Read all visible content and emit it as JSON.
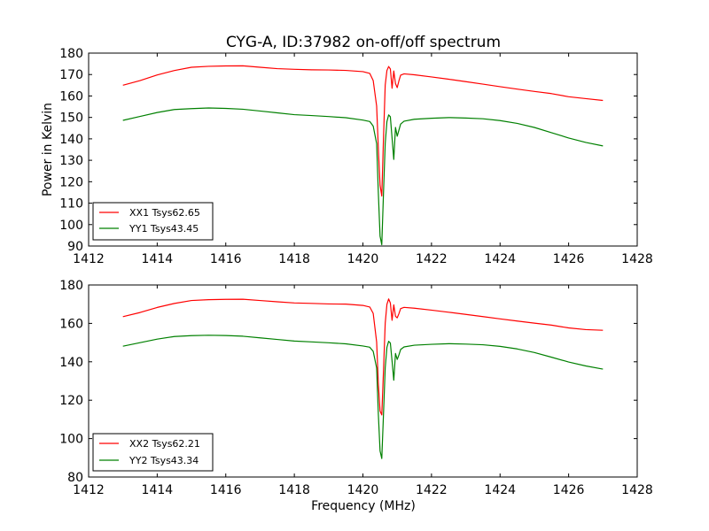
{
  "chart_data": [
    {
      "type": "line",
      "title": "CYG-A, ID:37982 on-off/off spectrum",
      "xlabel": "",
      "ylabel": "Power in Kelvin",
      "xlim": [
        1412,
        1428
      ],
      "ylim": [
        90,
        180
      ],
      "x_ticks": [
        "1412",
        "1414",
        "1416",
        "1418",
        "1420",
        "1422",
        "1424",
        "1426",
        "1428"
      ],
      "y_ticks": [
        "90",
        "100",
        "110",
        "120",
        "130",
        "140",
        "150",
        "160",
        "170",
        "180"
      ],
      "grid": false,
      "legend_position": "lower-left",
      "x": [
        1413.0,
        1413.5,
        1414.0,
        1414.5,
        1415.0,
        1415.5,
        1416.0,
        1416.5,
        1417.0,
        1417.5,
        1418.0,
        1418.5,
        1419.0,
        1419.5,
        1420.0,
        1420.2,
        1420.3,
        1420.4,
        1420.45,
        1420.5,
        1420.55,
        1420.6,
        1420.65,
        1420.7,
        1420.75,
        1420.8,
        1420.85,
        1420.9,
        1420.95,
        1421.0,
        1421.05,
        1421.1,
        1421.2,
        1421.5,
        1422.0,
        1422.5,
        1423.0,
        1423.5,
        1424.0,
        1424.5,
        1425.0,
        1425.5,
        1426.0,
        1426.5,
        1427.0
      ],
      "series": [
        {
          "name": "XX1 Tsys62.65",
          "color": "#ff0000",
          "values": [
            165,
            167,
            169.5,
            171.5,
            173,
            173.5,
            173.8,
            174,
            173.5,
            173,
            172.8,
            172.6,
            172.5,
            172.2,
            171.5,
            170.5,
            167,
            155,
            135,
            118,
            113,
            140,
            165,
            172,
            174,
            173,
            164,
            172,
            166,
            164,
            167,
            169.5,
            170,
            169.5,
            168.5,
            167.5,
            166.5,
            165.5,
            164.5,
            163.5,
            162.5,
            161.5,
            160,
            159,
            158
          ]
        },
        {
          "name": "YY1 Tsys43.45",
          "color": "#008000",
          "values": [
            148.5,
            150.5,
            152.5,
            154,
            154.5,
            154.8,
            154.5,
            154,
            153,
            152,
            151,
            150.5,
            150,
            149.5,
            148.5,
            148,
            146,
            138,
            115,
            95,
            91,
            115,
            138,
            148,
            151,
            150,
            140,
            130,
            145,
            141,
            144,
            147,
            148.5,
            149.5,
            150,
            150.3,
            150,
            149.5,
            148.5,
            147,
            145,
            142.5,
            140,
            138,
            136.5
          ]
        }
      ]
    },
    {
      "type": "line",
      "title": "",
      "xlabel": "Frequency (MHz)",
      "ylabel": "",
      "xlim": [
        1412,
        1428
      ],
      "ylim": [
        80,
        180
      ],
      "x_ticks": [
        "1412",
        "1414",
        "1416",
        "1418",
        "1420",
        "1422",
        "1424",
        "1426",
        "1428"
      ],
      "y_ticks": [
        "80",
        "100",
        "120",
        "140",
        "160",
        "180"
      ],
      "grid": false,
      "legend_position": "lower-left",
      "x": [
        1413.0,
        1413.5,
        1414.0,
        1414.5,
        1415.0,
        1415.5,
        1416.0,
        1416.5,
        1417.0,
        1417.5,
        1418.0,
        1418.5,
        1419.0,
        1419.5,
        1420.0,
        1420.2,
        1420.3,
        1420.4,
        1420.45,
        1420.5,
        1420.55,
        1420.6,
        1420.65,
        1420.7,
        1420.75,
        1420.8,
        1420.85,
        1420.9,
        1420.95,
        1421.0,
        1421.05,
        1421.1,
        1421.2,
        1421.5,
        1422.0,
        1422.5,
        1423.0,
        1423.5,
        1424.0,
        1424.5,
        1425.0,
        1425.5,
        1426.0,
        1426.5,
        1427.0
      ],
      "series": [
        {
          "name": "XX2 Tsys62.21",
          "color": "#ff0000",
          "values": [
            163.5,
            165.5,
            168,
            170,
            171.5,
            172,
            172.3,
            172.5,
            172,
            171.5,
            171,
            170.8,
            170.5,
            170.3,
            169.5,
            168.5,
            165,
            150,
            128,
            114,
            112,
            135,
            160,
            170,
            173,
            171,
            162,
            170,
            164,
            163,
            165,
            167.5,
            168,
            167.5,
            166.5,
            165.5,
            164.5,
            163.5,
            162.5,
            161.5,
            160.5,
            159.5,
            158,
            157,
            156.5
          ]
        },
        {
          "name": "YY2 Tsys43.34",
          "color": "#008000",
          "values": [
            148,
            150,
            152,
            153.5,
            154,
            154.2,
            154,
            153.5,
            152.5,
            151.5,
            150.5,
            150,
            149.5,
            149,
            148,
            147.5,
            145.5,
            137,
            113,
            94,
            90,
            113,
            137,
            147.5,
            150.5,
            149.5,
            140,
            130,
            144,
            141,
            143.5,
            146.5,
            148,
            149,
            149.5,
            149.8,
            149.5,
            149,
            148,
            146.5,
            144.5,
            142,
            139.5,
            137.5,
            136
          ]
        }
      ]
    }
  ]
}
